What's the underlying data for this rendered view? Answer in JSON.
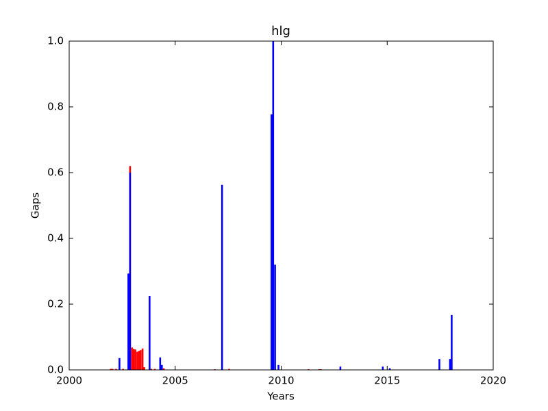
{
  "chart_data": {
    "type": "bar",
    "title": "hlg",
    "x_label": "Years",
    "y_label": "Gaps",
    "xlim": [
      2000,
      2020
    ],
    "xticks": [
      2000,
      2005,
      2010,
      2015,
      2020
    ],
    "ylim": [
      0,
      1
    ],
    "yticks": [
      {
        "value": 0,
        "label": "0.0"
      },
      {
        "value": 0.2,
        "label": "0.2"
      },
      {
        "value": 0.4,
        "label": "0.4"
      },
      {
        "value": 0.6,
        "label": "0.6"
      },
      {
        "value": 0.8,
        "label": "0.8"
      },
      {
        "value": 1,
        "label": "1.0"
      }
    ],
    "series": [
      {
        "color": "#ff0000",
        "x": [
          2001.92,
          2002.0,
          2002.17,
          2002.5,
          2002.83,
          2002.92,
          2003.0,
          2003.08,
          2003.17,
          2003.25,
          2003.33,
          2003.42,
          2003.5,
          2003.83,
          2004.0,
          2004.42,
          2006.83,
          2007.5,
          2011.25,
          2011.75,
          2011.83
        ],
        "values": [
          0.003,
          0.003,
          0.003,
          0.003,
          0.62,
          0.068,
          0.064,
          0.062,
          0.055,
          0.058,
          0.06,
          0.065,
          0.008,
          0.003,
          0.003,
          0.005,
          0.002,
          0.003,
          0.002,
          0.002,
          0.002
        ]
      },
      {
        "color": "#0000ff",
        "x": [
          2002.33,
          2002.75,
          2002.83,
          2003.75,
          2004.25,
          2004.33,
          2007.17,
          2009.5,
          2009.58,
          2009.67,
          2009.83,
          2012.75,
          2014.75,
          2015.08,
          2017.42,
          2017.92,
          2018.0
        ],
        "values": [
          0.036,
          0.293,
          0.6,
          0.225,
          0.038,
          0.015,
          0.563,
          0.777,
          1.0,
          0.32,
          0.015,
          0.01,
          0.01,
          0.005,
          0.033,
          0.033,
          0.167
        ]
      }
    ]
  }
}
